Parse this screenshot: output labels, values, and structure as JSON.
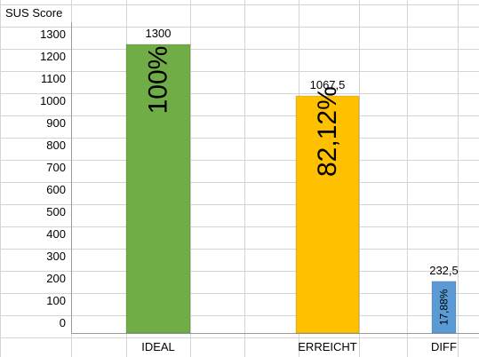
{
  "chart_data": {
    "type": "bar",
    "title": "SUS Score",
    "categories": [
      "IDEAL",
      "ERREICHT",
      "DIFF"
    ],
    "values": [
      1300,
      1067.5,
      232.5
    ],
    "value_labels": [
      "1300",
      "1067,5",
      "232,5"
    ],
    "bar_labels": [
      "100%",
      "82,12%",
      "17,88%"
    ],
    "colors": [
      "#70ad47",
      "#ffc000",
      "#5b9bd5"
    ],
    "ylim": [
      0,
      1300
    ],
    "yticks": [
      "0",
      "100",
      "200",
      "300",
      "400",
      "500",
      "600",
      "700",
      "800",
      "900",
      "1000",
      "1100",
      "1200",
      "1300"
    ],
    "grid": true,
    "legend": "none"
  }
}
